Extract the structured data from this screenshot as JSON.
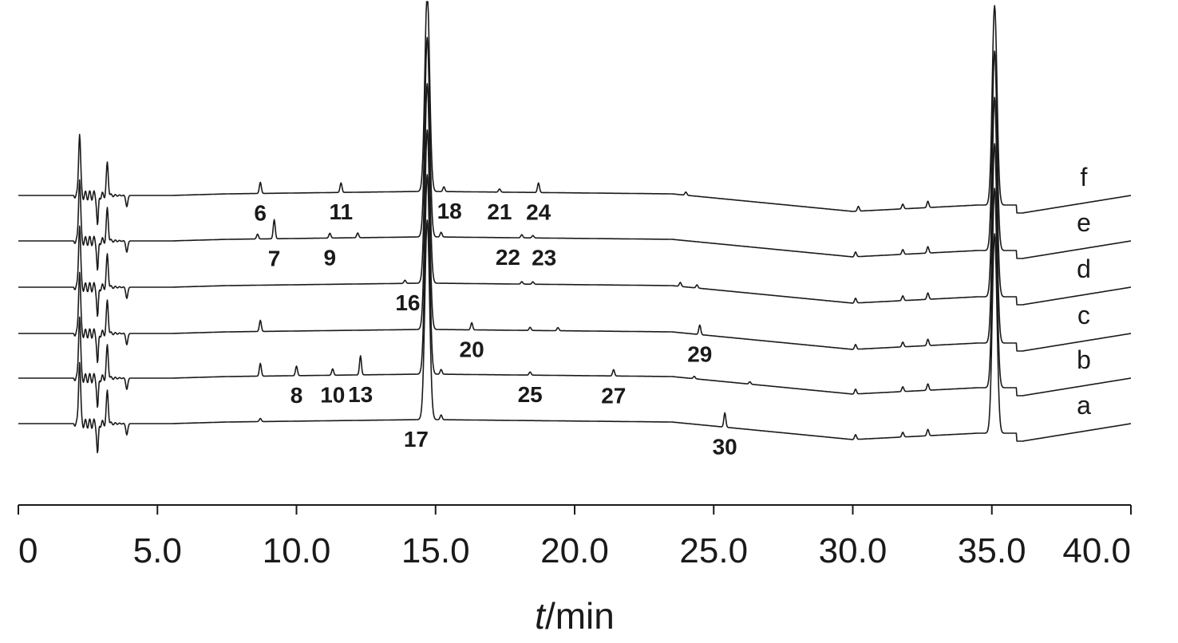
{
  "chart_data": {
    "type": "line",
    "xlabel_italic": "t",
    "xlabel_rest": "/min",
    "xlim": [
      0,
      40
    ],
    "xticks": [
      0,
      5,
      10,
      15,
      20,
      25,
      30,
      35,
      40
    ],
    "xtick_labels": [
      "0",
      "5.0",
      "10.0",
      "15.0",
      "20.0",
      "25.0",
      "30.0",
      "35.0",
      "40.0"
    ],
    "series": [
      {
        "name": "a",
        "peaks": [
          {
            "t": 2.2,
            "h": 80
          },
          {
            "t": 3.2,
            "h": 40
          },
          {
            "t": 8.7,
            "h": 4
          },
          {
            "t": 14.7,
            "h": 250
          },
          {
            "t": 15.2,
            "h": 6
          },
          {
            "t": 25.4,
            "h": 18
          },
          {
            "t": 30.1,
            "h": 6
          },
          {
            "t": 31.8,
            "h": 6
          },
          {
            "t": 32.7,
            "h": 8
          },
          {
            "t": 35.1,
            "h": 250
          }
        ]
      },
      {
        "name": "b",
        "peaks": [
          {
            "t": 2.2,
            "h": 80
          },
          {
            "t": 3.2,
            "h": 40
          },
          {
            "t": 8.7,
            "h": 16
          },
          {
            "t": 10.0,
            "h": 12
          },
          {
            "t": 11.3,
            "h": 8
          },
          {
            "t": 12.3,
            "h": 24
          },
          {
            "t": 14.7,
            "h": 250
          },
          {
            "t": 15.2,
            "h": 6
          },
          {
            "t": 18.4,
            "h": 4
          },
          {
            "t": 21.4,
            "h": 8
          },
          {
            "t": 24.3,
            "h": 3
          },
          {
            "t": 26.3,
            "h": 3
          },
          {
            "t": 30.1,
            "h": 6
          },
          {
            "t": 31.8,
            "h": 6
          },
          {
            "t": 32.7,
            "h": 8
          },
          {
            "t": 35.1,
            "h": 250
          }
        ]
      },
      {
        "name": "c",
        "peaks": [
          {
            "t": 2.2,
            "h": 80
          },
          {
            "t": 3.2,
            "h": 40
          },
          {
            "t": 8.7,
            "h": 14
          },
          {
            "t": 14.7,
            "h": 250
          },
          {
            "t": 16.3,
            "h": 9
          },
          {
            "t": 18.4,
            "h": 4
          },
          {
            "t": 19.4,
            "h": 4
          },
          {
            "t": 24.5,
            "h": 12
          },
          {
            "t": 30.1,
            "h": 6
          },
          {
            "t": 31.8,
            "h": 6
          },
          {
            "t": 32.7,
            "h": 8
          },
          {
            "t": 35.1,
            "h": 250
          }
        ]
      },
      {
        "name": "d",
        "peaks": [
          {
            "t": 2.2,
            "h": 80
          },
          {
            "t": 3.2,
            "h": 40
          },
          {
            "t": 13.9,
            "h": 4
          },
          {
            "t": 14.7,
            "h": 250
          },
          {
            "t": 18.1,
            "h": 3
          },
          {
            "t": 18.5,
            "h": 3
          },
          {
            "t": 23.8,
            "h": 5
          },
          {
            "t": 24.4,
            "h": 4
          },
          {
            "t": 30.1,
            "h": 6
          },
          {
            "t": 31.8,
            "h": 6
          },
          {
            "t": 32.7,
            "h": 8
          },
          {
            "t": 35.1,
            "h": 250
          }
        ]
      },
      {
        "name": "e",
        "peaks": [
          {
            "t": 2.2,
            "h": 80
          },
          {
            "t": 3.2,
            "h": 40
          },
          {
            "t": 8.6,
            "h": 6
          },
          {
            "t": 9.2,
            "h": 24
          },
          {
            "t": 11.2,
            "h": 6
          },
          {
            "t": 12.2,
            "h": 6
          },
          {
            "t": 14.7,
            "h": 250
          },
          {
            "t": 15.2,
            "h": 6
          },
          {
            "t": 18.1,
            "h": 4
          },
          {
            "t": 18.5,
            "h": 3
          },
          {
            "t": 30.1,
            "h": 6
          },
          {
            "t": 31.8,
            "h": 6
          },
          {
            "t": 32.7,
            "h": 8
          },
          {
            "t": 35.1,
            "h": 250
          }
        ]
      },
      {
        "name": "f",
        "peaks": [
          {
            "t": 2.2,
            "h": 80
          },
          {
            "t": 3.2,
            "h": 40
          },
          {
            "t": 8.7,
            "h": 14
          },
          {
            "t": 11.6,
            "h": 12
          },
          {
            "t": 14.7,
            "h": 250
          },
          {
            "t": 15.3,
            "h": 6
          },
          {
            "t": 17.3,
            "h": 4
          },
          {
            "t": 18.7,
            "h": 12
          },
          {
            "t": 24.0,
            "h": 4
          },
          {
            "t": 30.2,
            "h": 6
          },
          {
            "t": 31.8,
            "h": 6
          },
          {
            "t": 32.7,
            "h": 8
          },
          {
            "t": 35.1,
            "h": 250
          }
        ]
      }
    ],
    "peak_labels": [
      {
        "text": "6",
        "series": "f",
        "t": 8.7
      },
      {
        "text": "11",
        "series": "f",
        "t": 11.6
      },
      {
        "text": "18",
        "series": "f",
        "t": 15.5
      },
      {
        "text": "21",
        "series": "f",
        "t": 17.3
      },
      {
        "text": "24",
        "series": "f",
        "t": 18.7
      },
      {
        "text": "7",
        "series": "e",
        "t": 9.2
      },
      {
        "text": "9",
        "series": "e",
        "t": 11.2
      },
      {
        "text": "22",
        "series": "e",
        "t": 17.6
      },
      {
        "text": "23",
        "series": "e",
        "t": 18.9
      },
      {
        "text": "16",
        "series": "d",
        "t": 14.0
      },
      {
        "text": "20",
        "series": "c",
        "t": 16.3
      },
      {
        "text": "29",
        "series": "c",
        "t": 24.5
      },
      {
        "text": "8",
        "series": "b",
        "t": 10.0
      },
      {
        "text": "10",
        "series": "b",
        "t": 11.3
      },
      {
        "text": "13",
        "series": "b",
        "t": 12.3
      },
      {
        "text": "25",
        "series": "b",
        "t": 18.4
      },
      {
        "text": "27",
        "series": "b",
        "t": 21.4
      },
      {
        "text": "17",
        "series": "a",
        "t": 14.3
      },
      {
        "text": "30",
        "series": "a",
        "t": 25.4
      }
    ]
  }
}
